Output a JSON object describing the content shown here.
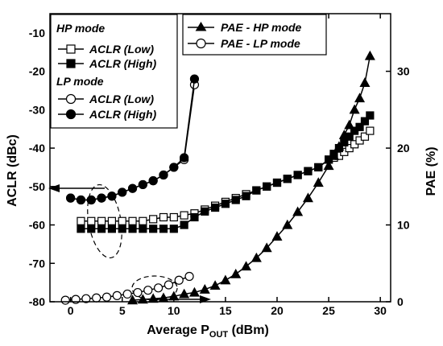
{
  "chart_data": {
    "type": "line",
    "xlabel": "Average P",
    "xlabel_sub": "OUT",
    "xlabel_unit": " (dBm)",
    "ylabel_left": "ACLR (dBc)",
    "ylabel_right": "PAE (%)",
    "xlim": [
      -2,
      31
    ],
    "ylim_left": [
      -80,
      -5
    ],
    "ylim_right": [
      0,
      37.5
    ],
    "xticks": [
      0,
      5,
      10,
      15,
      20,
      25,
      30
    ],
    "yticks_left": [
      -80,
      -70,
      -60,
      -50,
      -40,
      -30,
      -20,
      -10
    ],
    "yticks_right": [
      0,
      10,
      20,
      30
    ],
    "legend_left": {
      "hp_heading": "HP mode",
      "hp_low": "ACLR (Low)",
      "hp_high": "ACLR (High)",
      "lp_heading": "LP mode",
      "lp_low": "ACLR (Low)",
      "lp_high": "ACLR (High)"
    },
    "legend_right": {
      "pae_hp": "PAE - HP mode",
      "pae_lp": "PAE - LP mode"
    },
    "series": [
      {
        "name": "ACLR (Low)",
        "group": "HP mode",
        "axis": "left",
        "marker": "open-square",
        "x": [
          1,
          2,
          3,
          4,
          5,
          6,
          7,
          8,
          9,
          10,
          11,
          12,
          13,
          14,
          15,
          16,
          17,
          18,
          19,
          20,
          21,
          22,
          23,
          24,
          25,
          25.5,
          26,
          26.5,
          27,
          27.5,
          28,
          28.5,
          29
        ],
        "y": [
          -59,
          -59,
          -59,
          -59,
          -59,
          -59,
          -59,
          -58.5,
          -58,
          -58,
          -57.5,
          -57,
          -56,
          -55,
          -54,
          -53,
          -52,
          -51,
          -50,
          -49,
          -48,
          -47,
          -46,
          -45,
          -43,
          -42.5,
          -42,
          -41,
          -40,
          -39,
          -38,
          -37,
          -35.5
        ]
      },
      {
        "name": "ACLR (High)",
        "group": "HP mode",
        "axis": "left",
        "marker": "filled-square",
        "x": [
          1,
          2,
          3,
          4,
          5,
          6,
          7,
          8,
          9,
          10,
          11,
          12,
          13,
          14,
          15,
          16,
          17,
          18,
          19,
          20,
          21,
          22,
          23,
          24,
          25,
          25.5,
          26,
          26.5,
          27,
          27.5,
          28,
          28.5,
          29
        ],
        "y": [
          -61,
          -61,
          -61,
          -61,
          -61,
          -61,
          -61,
          -61,
          -61,
          -61,
          -60,
          -58,
          -56.5,
          -55.5,
          -54.5,
          -53.5,
          -52.5,
          -51,
          -50,
          -49,
          -48,
          -47,
          -46,
          -45,
          -43,
          -41.5,
          -40,
          -38.5,
          -37,
          -35.5,
          -34.5,
          -33,
          -31.5
        ]
      },
      {
        "name": "ACLR (Low)",
        "group": "LP mode",
        "axis": "left",
        "marker": "open-circle",
        "x": [
          0,
          1,
          2,
          3,
          4,
          5,
          6,
          7,
          8,
          9,
          10,
          11,
          12
        ],
        "y": [
          -53,
          -53.5,
          -53.5,
          -53,
          -52.5,
          -51.5,
          -50.5,
          -49.5,
          -48.5,
          -47,
          -45,
          -43,
          -23.5
        ]
      },
      {
        "name": "ACLR (High)",
        "group": "LP mode",
        "axis": "left",
        "marker": "filled-circle",
        "x": [
          0,
          1,
          2,
          3,
          4,
          5,
          6,
          7,
          8,
          9,
          10,
          11,
          12
        ],
        "y": [
          -53,
          -53.5,
          -53.5,
          -53,
          -52.5,
          -51.5,
          -50.5,
          -49.5,
          -48.5,
          -47,
          -45,
          -42.5,
          -22
        ]
      },
      {
        "name": "PAE - HP mode",
        "axis": "right",
        "marker": "filled-triangle",
        "x": [
          6,
          7,
          8,
          9,
          10,
          11,
          12,
          13,
          14,
          15,
          16,
          17,
          18,
          19,
          20,
          21,
          22,
          23,
          24,
          25,
          25.5,
          26,
          26.5,
          27,
          27.5,
          28,
          28.5,
          29
        ],
        "y": [
          0.2,
          0.3,
          0.4,
          0.5,
          0.7,
          1,
          1.2,
          1.6,
          2.1,
          2.8,
          3.6,
          4.6,
          5.7,
          7,
          8.5,
          10,
          11.7,
          13.5,
          15.5,
          17.7,
          19,
          20.2,
          21.7,
          23,
          25,
          26.5,
          28.5,
          32
        ]
      },
      {
        "name": "PAE - LP mode",
        "axis": "right",
        "marker": "open-circle",
        "x": [
          -0.5,
          0.5,
          1.5,
          2.5,
          3.5,
          4.5,
          5.5,
          6.5,
          7.5,
          8.5,
          9.5,
          10.5,
          11.5
        ],
        "y": [
          0.2,
          0.3,
          0.4,
          0.5,
          0.6,
          0.8,
          1,
          1.2,
          1.5,
          1.8,
          2.2,
          2.8,
          3.3
        ]
      }
    ]
  }
}
